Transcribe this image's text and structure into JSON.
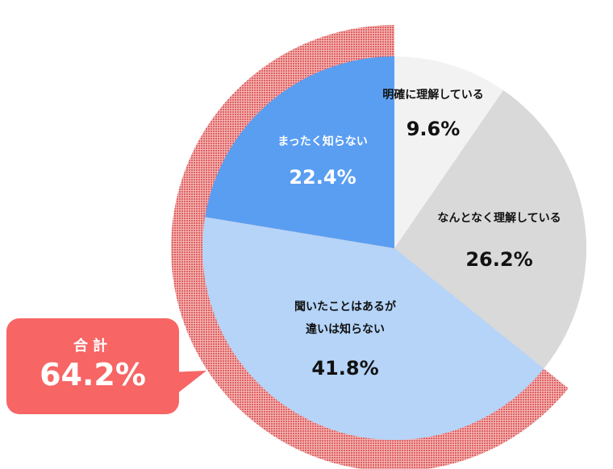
{
  "chart_data": {
    "type": "pie",
    "start": "top",
    "direction": "clockwise",
    "slices": [
      {
        "label_lines": [
          "明確に理解している"
        ],
        "value": 9.6,
        "value_label": "9.6%",
        "color": "#f2f2f2",
        "text_color": "#111111"
      },
      {
        "label_lines": [
          "なんとなく理解している"
        ],
        "value": 26.2,
        "value_label": "26.2%",
        "color": "#d9d9d9",
        "text_color": "#111111"
      },
      {
        "label_lines": [
          "聞いたことはあるが",
          "違いは知らない"
        ],
        "value": 41.8,
        "value_label": "41.8%",
        "color": "#b5d4f8",
        "text_color": "#111111"
      },
      {
        "label_lines": [
          "まったく知らない"
        ],
        "value": 22.4,
        "value_label": "22.4%",
        "color": "#5a9ef2",
        "text_color": "#ffffff"
      }
    ],
    "highlight": {
      "slices": [
        2,
        3
      ],
      "color": "#e05a5a",
      "label": "合計",
      "value_label": "64.2%",
      "value": 64.2
    }
  }
}
